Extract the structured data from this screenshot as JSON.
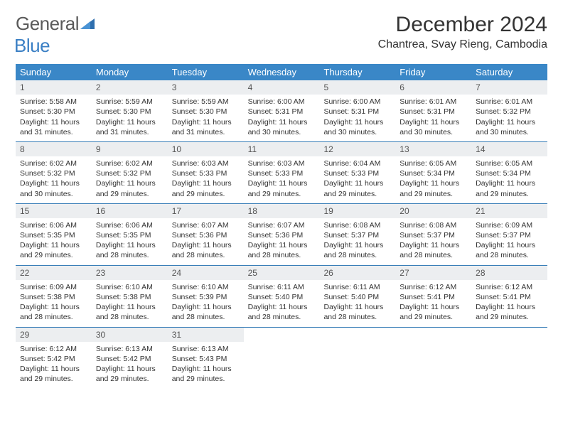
{
  "brand": {
    "text1": "General",
    "text2": "Blue"
  },
  "title": "December 2024",
  "location": "Chantrea, Svay Rieng, Cambodia",
  "colors": {
    "header_bg": "#3a87c7",
    "row_divider": "#3a7fb8",
    "daynum_bg": "#eceef0",
    "brand_blue": "#3a7fc4",
    "brand_gray": "#5a5a5a"
  },
  "day_names": [
    "Sunday",
    "Monday",
    "Tuesday",
    "Wednesday",
    "Thursday",
    "Friday",
    "Saturday"
  ],
  "weeks": [
    [
      {
        "n": "1",
        "sr": "Sunrise: 5:58 AM",
        "ss": "Sunset: 5:30 PM",
        "dl": "Daylight: 11 hours and 31 minutes."
      },
      {
        "n": "2",
        "sr": "Sunrise: 5:59 AM",
        "ss": "Sunset: 5:30 PM",
        "dl": "Daylight: 11 hours and 31 minutes."
      },
      {
        "n": "3",
        "sr": "Sunrise: 5:59 AM",
        "ss": "Sunset: 5:30 PM",
        "dl": "Daylight: 11 hours and 31 minutes."
      },
      {
        "n": "4",
        "sr": "Sunrise: 6:00 AM",
        "ss": "Sunset: 5:31 PM",
        "dl": "Daylight: 11 hours and 30 minutes."
      },
      {
        "n": "5",
        "sr": "Sunrise: 6:00 AM",
        "ss": "Sunset: 5:31 PM",
        "dl": "Daylight: 11 hours and 30 minutes."
      },
      {
        "n": "6",
        "sr": "Sunrise: 6:01 AM",
        "ss": "Sunset: 5:31 PM",
        "dl": "Daylight: 11 hours and 30 minutes."
      },
      {
        "n": "7",
        "sr": "Sunrise: 6:01 AM",
        "ss": "Sunset: 5:32 PM",
        "dl": "Daylight: 11 hours and 30 minutes."
      }
    ],
    [
      {
        "n": "8",
        "sr": "Sunrise: 6:02 AM",
        "ss": "Sunset: 5:32 PM",
        "dl": "Daylight: 11 hours and 30 minutes."
      },
      {
        "n": "9",
        "sr": "Sunrise: 6:02 AM",
        "ss": "Sunset: 5:32 PM",
        "dl": "Daylight: 11 hours and 29 minutes."
      },
      {
        "n": "10",
        "sr": "Sunrise: 6:03 AM",
        "ss": "Sunset: 5:33 PM",
        "dl": "Daylight: 11 hours and 29 minutes."
      },
      {
        "n": "11",
        "sr": "Sunrise: 6:03 AM",
        "ss": "Sunset: 5:33 PM",
        "dl": "Daylight: 11 hours and 29 minutes."
      },
      {
        "n": "12",
        "sr": "Sunrise: 6:04 AM",
        "ss": "Sunset: 5:33 PM",
        "dl": "Daylight: 11 hours and 29 minutes."
      },
      {
        "n": "13",
        "sr": "Sunrise: 6:05 AM",
        "ss": "Sunset: 5:34 PM",
        "dl": "Daylight: 11 hours and 29 minutes."
      },
      {
        "n": "14",
        "sr": "Sunrise: 6:05 AM",
        "ss": "Sunset: 5:34 PM",
        "dl": "Daylight: 11 hours and 29 minutes."
      }
    ],
    [
      {
        "n": "15",
        "sr": "Sunrise: 6:06 AM",
        "ss": "Sunset: 5:35 PM",
        "dl": "Daylight: 11 hours and 29 minutes."
      },
      {
        "n": "16",
        "sr": "Sunrise: 6:06 AM",
        "ss": "Sunset: 5:35 PM",
        "dl": "Daylight: 11 hours and 28 minutes."
      },
      {
        "n": "17",
        "sr": "Sunrise: 6:07 AM",
        "ss": "Sunset: 5:36 PM",
        "dl": "Daylight: 11 hours and 28 minutes."
      },
      {
        "n": "18",
        "sr": "Sunrise: 6:07 AM",
        "ss": "Sunset: 5:36 PM",
        "dl": "Daylight: 11 hours and 28 minutes."
      },
      {
        "n": "19",
        "sr": "Sunrise: 6:08 AM",
        "ss": "Sunset: 5:37 PM",
        "dl": "Daylight: 11 hours and 28 minutes."
      },
      {
        "n": "20",
        "sr": "Sunrise: 6:08 AM",
        "ss": "Sunset: 5:37 PM",
        "dl": "Daylight: 11 hours and 28 minutes."
      },
      {
        "n": "21",
        "sr": "Sunrise: 6:09 AM",
        "ss": "Sunset: 5:37 PM",
        "dl": "Daylight: 11 hours and 28 minutes."
      }
    ],
    [
      {
        "n": "22",
        "sr": "Sunrise: 6:09 AM",
        "ss": "Sunset: 5:38 PM",
        "dl": "Daylight: 11 hours and 28 minutes."
      },
      {
        "n": "23",
        "sr": "Sunrise: 6:10 AM",
        "ss": "Sunset: 5:38 PM",
        "dl": "Daylight: 11 hours and 28 minutes."
      },
      {
        "n": "24",
        "sr": "Sunrise: 6:10 AM",
        "ss": "Sunset: 5:39 PM",
        "dl": "Daylight: 11 hours and 28 minutes."
      },
      {
        "n": "25",
        "sr": "Sunrise: 6:11 AM",
        "ss": "Sunset: 5:40 PM",
        "dl": "Daylight: 11 hours and 28 minutes."
      },
      {
        "n": "26",
        "sr": "Sunrise: 6:11 AM",
        "ss": "Sunset: 5:40 PM",
        "dl": "Daylight: 11 hours and 28 minutes."
      },
      {
        "n": "27",
        "sr": "Sunrise: 6:12 AM",
        "ss": "Sunset: 5:41 PM",
        "dl": "Daylight: 11 hours and 29 minutes."
      },
      {
        "n": "28",
        "sr": "Sunrise: 6:12 AM",
        "ss": "Sunset: 5:41 PM",
        "dl": "Daylight: 11 hours and 29 minutes."
      }
    ],
    [
      {
        "n": "29",
        "sr": "Sunrise: 6:12 AM",
        "ss": "Sunset: 5:42 PM",
        "dl": "Daylight: 11 hours and 29 minutes."
      },
      {
        "n": "30",
        "sr": "Sunrise: 6:13 AM",
        "ss": "Sunset: 5:42 PM",
        "dl": "Daylight: 11 hours and 29 minutes."
      },
      {
        "n": "31",
        "sr": "Sunrise: 6:13 AM",
        "ss": "Sunset: 5:43 PM",
        "dl": "Daylight: 11 hours and 29 minutes."
      },
      {
        "n": "",
        "sr": "",
        "ss": "",
        "dl": ""
      },
      {
        "n": "",
        "sr": "",
        "ss": "",
        "dl": ""
      },
      {
        "n": "",
        "sr": "",
        "ss": "",
        "dl": ""
      },
      {
        "n": "",
        "sr": "",
        "ss": "",
        "dl": ""
      }
    ]
  ]
}
